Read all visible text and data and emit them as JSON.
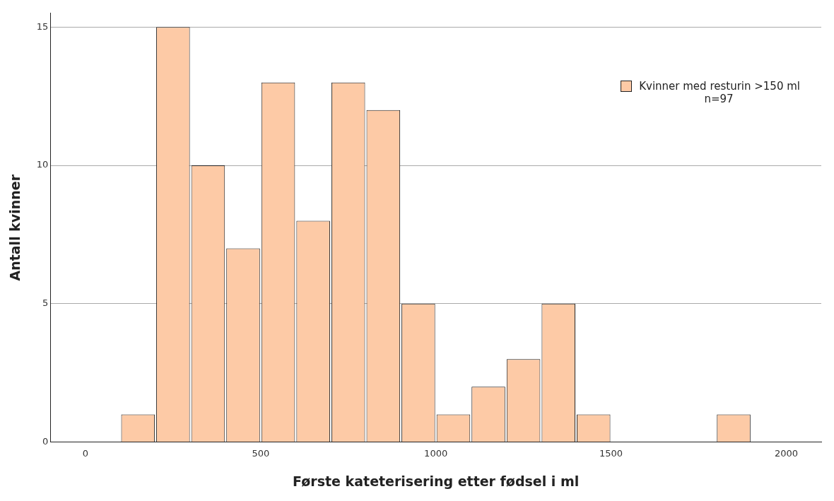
{
  "chart_data": {
    "type": "histogram",
    "xlabel": "Første kateterisering etter fødsel i ml",
    "ylabel": "Antall kvinner",
    "bins": [
      100,
      200,
      300,
      400,
      500,
      600,
      700,
      800,
      900,
      1000,
      1100,
      1200,
      1300,
      1400,
      1500,
      1600,
      1700,
      1800,
      1900
    ],
    "series": [
      {
        "name": "Kvinner med resturin >150 ml",
        "color": "#fdcaa6",
        "values": [
          1,
          15,
          10,
          7,
          13,
          8,
          13,
          12,
          5,
          1,
          2,
          3,
          5,
          1,
          0,
          0,
          0,
          1
        ]
      }
    ],
    "xlim": [
      -100,
      2100
    ],
    "xticks": [
      0,
      500,
      1000,
      1500,
      2000
    ],
    "ylim": [
      0,
      15.5
    ],
    "yticks": [
      0,
      5,
      10,
      15
    ],
    "grid": "y",
    "legend": "top right",
    "annotations": [
      "n=97"
    ]
  }
}
